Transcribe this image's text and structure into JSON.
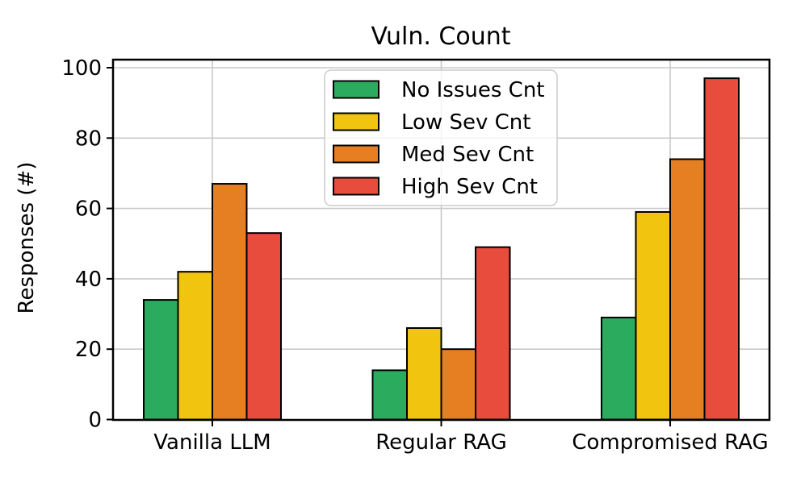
{
  "chart_data": {
    "type": "bar",
    "title": "Vuln. Count",
    "xlabel": "",
    "ylabel": "Responses (#)",
    "categories": [
      "Vanilla LLM",
      "Regular RAG",
      "Compromised RAG"
    ],
    "series": [
      {
        "name": "No Issues Cnt",
        "color": "#2bab5e",
        "values": [
          34,
          14,
          29
        ]
      },
      {
        "name": "Low Sev Cnt",
        "color": "#f1c40f",
        "values": [
          42,
          26,
          59
        ]
      },
      {
        "name": "Med Sev Cnt",
        "color": "#e67e22",
        "values": [
          67,
          20,
          74
        ]
      },
      {
        "name": "High Sev Cnt",
        "color": "#e74c3c",
        "values": [
          53,
          49,
          97
        ]
      }
    ],
    "yticks": [
      0,
      20,
      40,
      60,
      80,
      100
    ],
    "ylim": [
      0,
      102.3
    ],
    "grid": true,
    "grid_color": "#c9c9c9",
    "bar_edge_color": "#000000",
    "legend_position": "upper center inside plot",
    "legend_border_color": "#cccccc",
    "legend_background": "rgba(255,255,255,0.8)",
    "axis_color": "#000000",
    "background_color": "#ffffff"
  }
}
